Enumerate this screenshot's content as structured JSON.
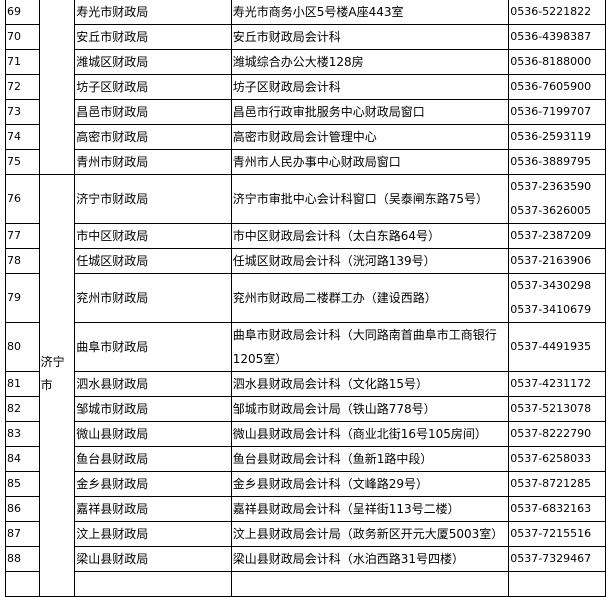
{
  "groups": [
    {
      "city": "",
      "rows": [
        {
          "no": "69",
          "name": "寿光市财政局",
          "addr": "寿光市商务小区5号楼A座443室",
          "tel": [
            "0536-5221822"
          ]
        },
        {
          "no": "70",
          "name": "安丘市财政局",
          "addr": "安丘市财政局会计科",
          "tel": [
            "0536-4398387"
          ]
        },
        {
          "no": "71",
          "name": "潍城区财政局",
          "addr": "潍城综合办公大楼128房",
          "tel": [
            "0536-8188000"
          ]
        },
        {
          "no": "72",
          "name": "坊子区财政局",
          "addr": "坊子区财政局会计科",
          "tel": [
            "0536-7605900"
          ]
        },
        {
          "no": "73",
          "name": "昌邑市财政局",
          "addr": "昌邑市行政审批服务中心财政局窗口",
          "tel": [
            "0536-7199707"
          ]
        },
        {
          "no": "74",
          "name": "高密市财政局",
          "addr": "高密市财政局会计管理中心",
          "tel": [
            "0536-2593119"
          ]
        },
        {
          "no": "75",
          "name": "青州市财政局",
          "addr": "青州市人民办事中心财政局窗口",
          "tel": [
            "0536-3889795"
          ]
        }
      ]
    },
    {
      "city": "济宁市",
      "rows": [
        {
          "no": "76",
          "name": "济宁市财政局",
          "addr": "济宁市审批中心会计科窗口（吴泰闸东路75号）",
          "tel": [
            "0537-2363590",
            "0537-3626005"
          ]
        },
        {
          "no": "77",
          "name": "市中区财政局",
          "addr": "市中区财政局会计科（太白东路64号）",
          "tel": [
            "0537-2387209"
          ]
        },
        {
          "no": "78",
          "name": "任城区财政局",
          "addr": "任城区财政局会计科（洸河路139号）",
          "tel": [
            "0537-2163906"
          ]
        },
        {
          "no": "79",
          "name": "兖州市财政局",
          "addr": "兖州市财政局二楼群工办（建设西路）",
          "tel": [
            "0537-3430298",
            "0537-3410679"
          ]
        },
        {
          "no": "80",
          "name": "曲阜市财政局",
          "addr": "曲阜市财政局会计科（大同路南首曲阜市工商银行1205室）",
          "tel": [
            "0537-4491935"
          ]
        },
        {
          "no": "81",
          "name": "泗水县财政局",
          "addr": "泗水县财政局会计科（文化路15号）",
          "tel": [
            "0537-4231172"
          ]
        },
        {
          "no": "82",
          "name": "邹城市财政局",
          "addr": "邹城市财政局会计局（铁山路778号）",
          "tel": [
            "0537-5213078"
          ]
        },
        {
          "no": "83",
          "name": "微山县财政局",
          "addr": "微山县财政局会计科（商业北街16号105房间）",
          "tel": [
            "0537-8222790"
          ]
        },
        {
          "no": "84",
          "name": "鱼台县财政局",
          "addr": "鱼台县财政局会计科（鱼新1路中段）",
          "tel": [
            "0537-6258033"
          ]
        },
        {
          "no": "85",
          "name": "金乡县财政局",
          "addr": "金乡县财政局会计科（文峰路29号）",
          "tel": [
            "0537-8721285"
          ]
        },
        {
          "no": "86",
          "name": "嘉祥县财政局",
          "addr": "嘉祥县财政局会计科（呈祥街113号二楼）",
          "tel": [
            "0537-6832163"
          ]
        },
        {
          "no": "87",
          "name": "汶上县财政局",
          "addr": "汶上县财政局会计局（政务新区开元大厦5003室）",
          "tel": [
            "0537-7215516"
          ]
        },
        {
          "no": "88",
          "name": "梁山县财政局",
          "addr": "梁山县财政局会计科（水泊西路31号四楼）",
          "tel": [
            "0537-7329467"
          ]
        }
      ]
    }
  ]
}
